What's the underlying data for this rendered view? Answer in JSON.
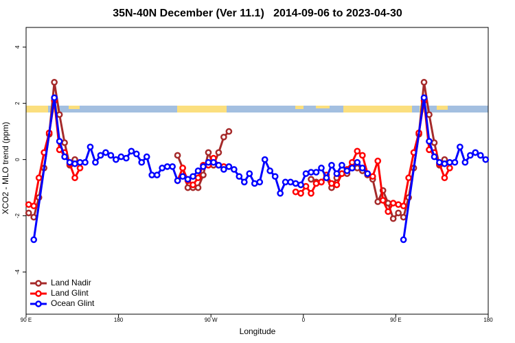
{
  "chart_data": {
    "type": "line",
    "title": "35N-40N December (Ver 11.1)   2014-09-06 to 2023-04-30",
    "x_label": "Longitude",
    "y_label": "XCO2 - MLO trend (ppm)",
    "xlim": [
      90,
      540
    ],
    "ylim": [
      -5.5,
      4.7
    ],
    "xticks": [
      {
        "value": 90,
        "label": "90 E"
      },
      {
        "value": 180,
        "label": "180"
      },
      {
        "value": 270,
        "label": "90 W"
      },
      {
        "value": 360,
        "label": "0"
      },
      {
        "value": 450,
        "label": "90 E"
      },
      {
        "value": 540,
        "label": "180"
      }
    ],
    "yticks": [
      -4,
      -2,
      0,
      2,
      4
    ],
    "grid": false,
    "legend": "bottom-left",
    "series": [
      {
        "name": "Land Nadir",
        "color": "#a52a2a",
        "x": [
          92.5,
          97.5,
          102.5,
          107.5,
          112.5,
          117.5,
          122.5,
          127.5,
          132.5,
          137.5,
          142.5,
          237.5,
          242.5,
          247.5,
          252.5,
          257.5,
          262.5,
          267.5,
          272.5,
          277.5,
          282.5,
          287.5,
          292.5,
          367.5,
          372.5,
          377.5,
          382.5,
          387.5,
          392.5,
          397.5,
          402.5,
          407.5,
          412.5,
          417.5,
          422.5,
          427.5,
          432.5,
          437.5,
          442.5,
          447.5,
          452.5,
          457.5,
          462.5,
          467.5,
          472.5,
          477.5,
          482.5,
          487.5,
          492.5,
          497.5
        ],
        "values": [
          -1.9,
          -2.05,
          -1.35,
          -0.3,
          0.9,
          2.75,
          1.6,
          0.6,
          -0.2,
          0.0,
          null,
          0.15,
          -0.3,
          -1.0,
          -1.0,
          -1.0,
          -0.55,
          0.25,
          -0.2,
          0.25,
          0.8,
          1.0,
          null,
          -0.7,
          -0.8,
          -0.8,
          -0.65,
          -1.0,
          -0.65,
          -0.5,
          -0.5,
          -0.3,
          -0.3,
          -0.4,
          -0.55,
          -0.7,
          -1.5,
          -1.1,
          -1.55,
          -2.1,
          -1.9,
          -2.05,
          -1.35,
          -0.3,
          0.9,
          2.75,
          1.6,
          0.6,
          -0.2,
          0.0
        ]
      },
      {
        "name": "Land Glint",
        "color": "#ff0000",
        "x": [
          92.5,
          97.5,
          102.5,
          107.5,
          112.5,
          117.5,
          122.5,
          127.5,
          132.5,
          137.5,
          142.5,
          147.5,
          237.5,
          242.5,
          247.5,
          252.5,
          257.5,
          262.5,
          267.5,
          272.5,
          277.5,
          282.5,
          287.5,
          352.5,
          357.5,
          362.5,
          367.5,
          372.5,
          377.5,
          382.5,
          387.5,
          392.5,
          397.5,
          402.5,
          407.5,
          412.5,
          417.5,
          422.5,
          427.5,
          432.5,
          437.5,
          442.5,
          447.5,
          452.5,
          457.5,
          462.5,
          467.5,
          472.5,
          477.5,
          482.5,
          487.5,
          492.5,
          497.5,
          502.5
        ],
        "values": [
          -1.6,
          -1.65,
          -0.65,
          0.25,
          0.95,
          2.1,
          0.35,
          0.25,
          -0.15,
          -0.65,
          -0.3,
          null,
          -0.75,
          -0.3,
          -0.75,
          -0.9,
          -0.65,
          -0.2,
          -0.2,
          0.05,
          -0.2,
          -0.25,
          null,
          -1.15,
          -1.2,
          -0.95,
          -1.2,
          -0.85,
          -0.8,
          -0.55,
          -0.85,
          -0.9,
          -0.5,
          -0.35,
          -0.1,
          0.3,
          0.15,
          -0.5,
          -0.6,
          -0.05,
          -1.45,
          -1.85,
          -1.55,
          -1.6,
          -1.65,
          -0.65,
          0.25,
          0.95,
          2.1,
          0.35,
          0.25,
          -0.15,
          -0.65,
          -0.3
        ]
      },
      {
        "name": "Ocean Glint",
        "color": "#0000ff",
        "x": [
          97.5,
          117.5,
          122.5,
          127.5,
          132.5,
          137.5,
          142.5,
          147.5,
          152.5,
          157.5,
          162.5,
          167.5,
          172.5,
          177.5,
          182.5,
          187.5,
          192.5,
          197.5,
          202.5,
          207.5,
          212.5,
          217.5,
          222.5,
          227.5,
          232.5,
          237.5,
          242.5,
          247.5,
          252.5,
          257.5,
          262.5,
          267.5,
          272.5,
          277.5,
          282.5,
          287.5,
          292.5,
          297.5,
          302.5,
          307.5,
          312.5,
          317.5,
          322.5,
          327.5,
          332.5,
          337.5,
          342.5,
          347.5,
          352.5,
          357.5,
          362.5,
          367.5,
          372.5,
          377.5,
          382.5,
          387.5,
          392.5,
          397.5,
          402.5,
          407.5,
          412.5,
          417.5,
          422.5,
          427.5,
          457.5,
          477.5,
          482.5,
          487.5,
          492.5,
          497.5,
          502.5,
          507.5,
          512.5,
          517.5,
          522.5,
          527.5,
          532.5,
          537.5
        ],
        "values": [
          -2.85,
          2.2,
          0.65,
          0.1,
          -0.1,
          -0.15,
          -0.1,
          -0.1,
          0.45,
          -0.1,
          0.15,
          0.25,
          0.15,
          0.0,
          0.1,
          0.05,
          0.3,
          0.2,
          -0.1,
          0.1,
          -0.55,
          -0.55,
          -0.3,
          -0.25,
          -0.25,
          -0.75,
          -0.6,
          -0.7,
          -0.6,
          -0.4,
          -0.25,
          -0.1,
          -0.1,
          -0.2,
          -0.35,
          -0.25,
          -0.35,
          -0.6,
          -0.8,
          -0.5,
          -0.85,
          -0.8,
          0.0,
          -0.4,
          -0.6,
          -1.2,
          -0.8,
          -0.8,
          -0.85,
          -0.9,
          -0.5,
          -0.45,
          -0.45,
          -0.3,
          -0.65,
          -0.2,
          -0.5,
          -0.2,
          -0.4,
          -0.3,
          -0.1,
          -0.3,
          -0.5,
          null,
          -2.85,
          2.2,
          0.65,
          0.1,
          -0.1,
          -0.15,
          -0.1,
          -0.1,
          0.45,
          -0.1,
          0.15,
          0.25,
          0.15,
          0.0
        ]
      }
    ]
  }
}
